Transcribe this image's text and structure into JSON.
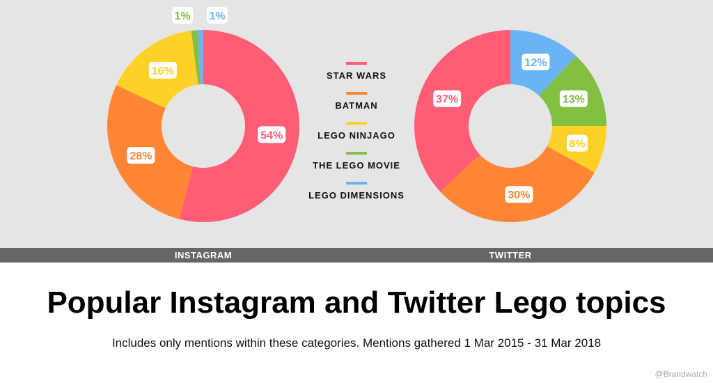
{
  "chart_data": {
    "type": "pie",
    "title": "Popular Instagram and Twitter Lego topics",
    "subtitle": "Includes only mentions within these categories. Mentions gathered 1 Mar 2015 - 31 Mar 2018",
    "credit": "@Brandwatch",
    "categories": [
      "STAR WARS",
      "BATMAN",
      "LEGO NINJAGO",
      "THE LEGO MOVIE",
      "LEGO DIMENSIONS"
    ],
    "colors": [
      "#ff5c75",
      "#fe8533",
      "#ffd026",
      "#83bf41",
      "#6ab4f5"
    ],
    "charts": [
      {
        "name": "INSTAGRAM",
        "values": [
          54,
          28,
          16,
          1,
          1
        ],
        "direction": "clockwise"
      },
      {
        "name": "TWITTER",
        "values": [
          37,
          30,
          8,
          13,
          12
        ],
        "direction": "counterclockwise"
      }
    ]
  }
}
